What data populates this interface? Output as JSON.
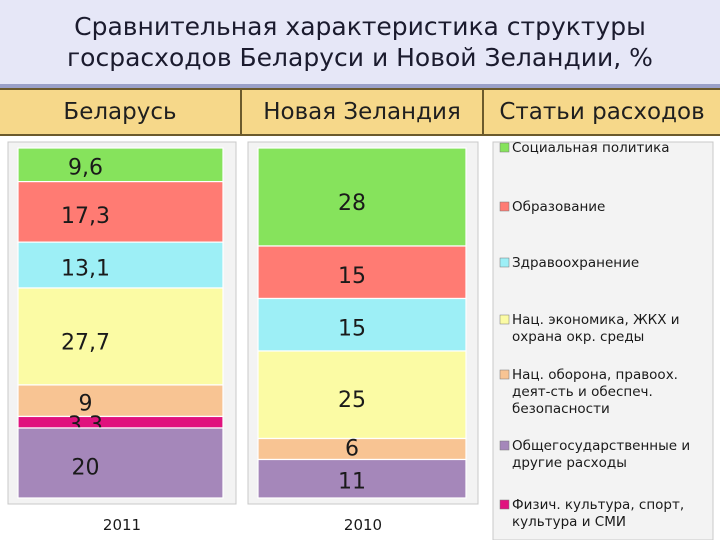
{
  "title": {
    "line1": "Сравнительная характеристика структуры",
    "line2": "госрасходов Беларуси и Новой Зеландии, %"
  },
  "header": {
    "col1": "Беларусь",
    "col2": "Новая Зеландия",
    "col3": "Статьи расходов"
  },
  "chart_data": {
    "type": "bar",
    "stacked": "100%",
    "categories": [
      "2011",
      "2010"
    ],
    "series": [
      {
        "name": "Социальная политика",
        "values": [
          9.6,
          28
        ],
        "labels": [
          "9,6",
          "28"
        ],
        "color": "#86e35c"
      },
      {
        "name": "Образование",
        "values": [
          17.3,
          15
        ],
        "labels": [
          "17,3",
          "15"
        ],
        "color": "#ff7b73"
      },
      {
        "name": "Здравоохранение",
        "values": [
          13.1,
          15
        ],
        "labels": [
          "13,1",
          "15"
        ],
        "color": "#9deff6"
      },
      {
        "name": "Нац. экономика, ЖКХ и охрана окр. среды",
        "values": [
          27.7,
          25
        ],
        "labels": [
          "27,7",
          "25"
        ],
        "color": "#fbfba4"
      },
      {
        "name": "Нац. оборона, правоох. деят-сть и обеспеч. безопасности",
        "values": [
          9,
          6
        ],
        "labels": [
          "9",
          "6"
        ],
        "color": "#f8c493"
      },
      {
        "name": "Физич. культура, спорт, культура и СМИ",
        "values": [
          3.3,
          0
        ],
        "labels": [
          "3,3",
          ""
        ],
        "color": "#e0127e"
      },
      {
        "name": "Общегосударственные и другие расходы",
        "values": [
          20,
          11
        ],
        "labels": [
          "20",
          "11"
        ],
        "color": "#a587ba"
      }
    ],
    "legend_order": [
      "Социальная политика",
      "Образование",
      "Здравоохранение",
      "Нац. экономика, ЖКХ и охрана окр. среды",
      "Нац. оборона, правоох. деят-сть и обеспеч. безопасности",
      "Общегосударственные и другие расходы",
      "Физич. культура, спорт, культура и СМИ"
    ],
    "legend_lines": [
      [
        "Социальная политика"
      ],
      [
        "Образование"
      ],
      [
        "Здравоохранение"
      ],
      [
        "Нац. экономика, ЖКХ и",
        "охрана окр. среды"
      ],
      [
        "Нац. оборона, правоох.",
        "деят-сть и обеспеч.",
        "безопасности"
      ],
      [
        "Общегосударственные и",
        "другие расходы"
      ],
      [
        "Физич. культура, спорт,",
        "культура и СМИ"
      ]
    ],
    "legend_placement": "right",
    "ylim": [
      0,
      100
    ]
  }
}
